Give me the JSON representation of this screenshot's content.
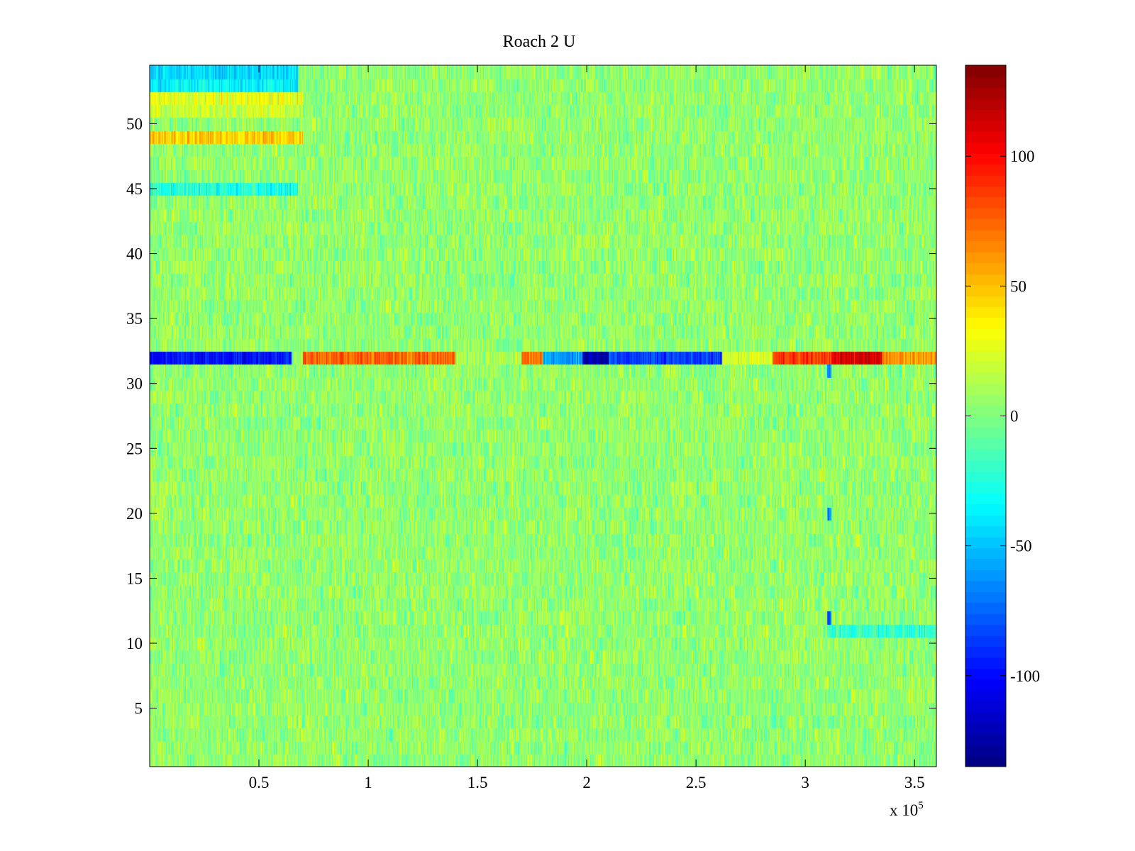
{
  "chart_data": {
    "type": "heatmap",
    "title": "Roach 2 U",
    "xlabel": "",
    "ylabel": "",
    "x_multiplier_label": {
      "base": "x 10",
      "exponent": "5"
    },
    "xlim": [
      0,
      3.6
    ],
    "ylim": [
      0.5,
      54.5
    ],
    "x_ticks": [
      0.5,
      1,
      1.5,
      2,
      2.5,
      3,
      3.5
    ],
    "x_tick_labels": [
      "0.5",
      "1",
      "1.5",
      "2",
      "2.5",
      "3",
      "3.5"
    ],
    "y_ticks": [
      5,
      10,
      15,
      20,
      25,
      30,
      35,
      40,
      45,
      50
    ],
    "y_tick_labels": [
      "5",
      "10",
      "15",
      "20",
      "25",
      "30",
      "35",
      "40",
      "45",
      "50"
    ],
    "rows": 54,
    "colormap": "jet",
    "clim": [
      -135,
      135
    ],
    "colorbar": {
      "ticks": [
        -100,
        -50,
        0,
        50,
        100
      ],
      "tick_labels": [
        "-100",
        "-50",
        "0",
        "50",
        "100"
      ]
    },
    "background_value": 5,
    "noise_amplitude": 16,
    "features": [
      {
        "row": 54,
        "x_range": [
          0,
          0.68
        ],
        "value": -45
      },
      {
        "row": 53,
        "x_range": [
          0,
          0.68
        ],
        "value": -35
      },
      {
        "row": 52,
        "x_range": [
          0,
          0.7
        ],
        "value": 28
      },
      {
        "row": 51,
        "x_range": [
          0,
          0.7
        ],
        "value": 20
      },
      {
        "row": 49,
        "x_range": [
          0,
          0.7
        ],
        "value": 45
      },
      {
        "row": 45,
        "x_range": [
          0,
          0.68
        ],
        "value": -25
      },
      {
        "row": 32,
        "x_range": [
          0,
          0.65
        ],
        "value": -100
      },
      {
        "row": 32,
        "x_range": [
          0.7,
          1.4
        ],
        "value": 75
      },
      {
        "row": 32,
        "x_range": [
          1.4,
          1.7
        ],
        "value": 10
      },
      {
        "row": 32,
        "x_range": [
          1.7,
          1.8
        ],
        "value": 70
      },
      {
        "row": 32,
        "x_range": [
          1.8,
          1.98
        ],
        "value": -60
      },
      {
        "row": 32,
        "x_range": [
          1.98,
          2.1
        ],
        "value": -125
      },
      {
        "row": 32,
        "x_range": [
          2.1,
          2.62
        ],
        "value": -85
      },
      {
        "row": 32,
        "x_range": [
          2.62,
          2.85
        ],
        "value": 25
      },
      {
        "row": 32,
        "x_range": [
          2.85,
          3.12
        ],
        "value": 85
      },
      {
        "row": 32,
        "x_range": [
          3.12,
          3.35
        ],
        "value": 110
      },
      {
        "row": 32,
        "x_range": [
          3.35,
          3.6
        ],
        "value": 60
      },
      {
        "row": 31,
        "x_range": [
          3.1,
          3.12
        ],
        "value": -60
      },
      {
        "row": 20,
        "x_range": [
          3.1,
          3.12
        ],
        "value": -70
      },
      {
        "row": 12,
        "x_range": [
          3.1,
          3.12
        ],
        "value": -80
      },
      {
        "row": 11,
        "x_range": [
          3.1,
          3.6
        ],
        "value": -20
      }
    ]
  }
}
